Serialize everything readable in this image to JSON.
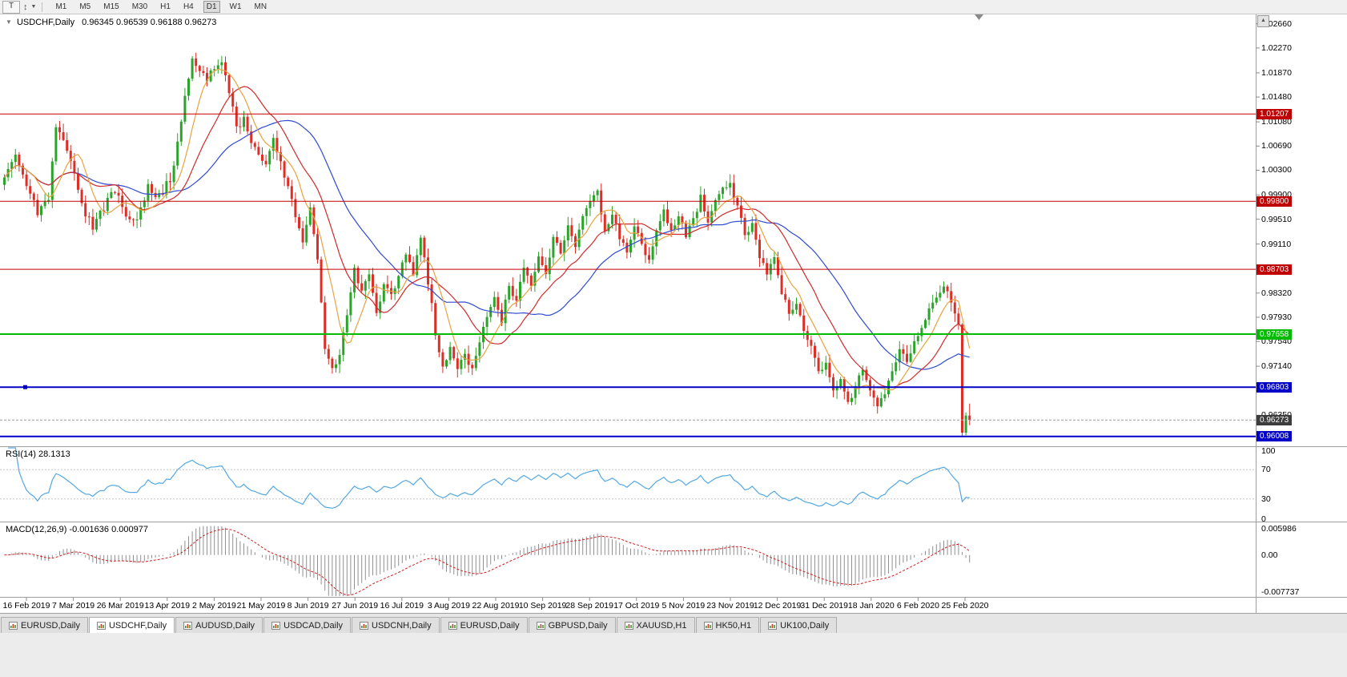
{
  "toolbar": {
    "t_button": "T",
    "pointer_icon": "↕",
    "caret_icon": "▼",
    "timeframes": [
      "M1",
      "M5",
      "M15",
      "M30",
      "H1",
      "H4",
      "D1",
      "W1",
      "MN"
    ],
    "active_timeframe": "D1"
  },
  "chart": {
    "collapse_icon": "▼",
    "scroll_up_icon": "▲",
    "title": "USDCHF,Daily",
    "ohlc_text": "0.96345 0.96539 0.96188 0.96273",
    "price_axis_labels": [
      "1.02660",
      "1.02270",
      "1.01870",
      "1.01480",
      "1.01080",
      "1.00690",
      "1.00300",
      "0.99900",
      "0.99510",
      "0.99110",
      "0.98720",
      "0.98320",
      "0.97930",
      "0.97540",
      "0.97140",
      "0.96750",
      "0.96350",
      "0.95960"
    ],
    "date_axis_labels": [
      "16 Feb 2019",
      "7 Mar 2019",
      "26 Mar 2019",
      "13 Apr 2019",
      "2 May 2019",
      "21 May 2019",
      "8 Jun 2019",
      "27 Jun 2019",
      "16 Jul 2019",
      "3 Aug 2019",
      "22 Aug 2019",
      "10 Sep 2019",
      "28 Sep 2019",
      "17 Oct 2019",
      "5 Nov 2019",
      "23 Nov 2019",
      "12 Dec 2019",
      "31 Dec 2019",
      "18 Jan 2020",
      "6 Feb 2020",
      "25 Feb 2020"
    ]
  },
  "rsi_panel": {
    "label": "RSI(14) 28.1313",
    "scale": [
      "100",
      "70",
      "30",
      "0"
    ]
  },
  "macd_panel": {
    "label": "MACD(12,26,9) -0.001636 0.000977",
    "scale": [
      "0.005986",
      "0.00",
      "-0.007737"
    ]
  },
  "tabs": [
    {
      "label": "EURUSD,Daily",
      "active": false
    },
    {
      "label": "USDCHF,Daily",
      "active": true
    },
    {
      "label": "AUDUSD,Daily",
      "active": false
    },
    {
      "label": "USDCAD,Daily",
      "active": false
    },
    {
      "label": "USDCNH,Daily",
      "active": false
    },
    {
      "label": "EURUSD,Daily",
      "active": false
    },
    {
      "label": "GBPUSD,Daily",
      "active": false
    },
    {
      "label": "XAUUSD,H1",
      "active": false
    },
    {
      "label": "HK50,H1",
      "active": false
    },
    {
      "label": "UK100,Daily",
      "active": false
    }
  ],
  "colors": {
    "candle_up": "#2AA52A",
    "candle_down": "#DD2F27",
    "rsi_line": "#53A8E2",
    "macd_hist": "#909090",
    "macd_signal": "#D02020",
    "bid_badge_bg": "#3C3C3C"
  },
  "chart_data": {
    "type": "candlestick",
    "symbol": "USDCHF",
    "period": "Daily",
    "current_ohlc": {
      "open": 0.96345,
      "high": 0.96539,
      "low": 0.96188,
      "close": 0.96273
    },
    "ylim": [
      0.9585,
      1.0276
    ],
    "n_candles": 263,
    "close_waypoints": [
      [
        0,
        1.0015
      ],
      [
        3,
        1.0052
      ],
      [
        6,
        1.0008
      ],
      [
        9,
        0.9962
      ],
      [
        12,
        0.9985
      ],
      [
        14,
        1.0098
      ],
      [
        16,
        1.0075
      ],
      [
        18,
        1.004
      ],
      [
        21,
        0.9975
      ],
      [
        24,
        0.9935
      ],
      [
        27,
        0.997
      ],
      [
        30,
        0.9998
      ],
      [
        33,
        0.996
      ],
      [
        36,
        0.9952
      ],
      [
        39,
        1.0002
      ],
      [
        42,
        0.9988
      ],
      [
        45,
        1.0015
      ],
      [
        47,
        1.0072
      ],
      [
        49,
        1.015
      ],
      [
        51,
        1.0208
      ],
      [
        53,
        1.019
      ],
      [
        55,
        1.0172
      ],
      [
        57,
        1.0198
      ],
      [
        59,
        1.0205
      ],
      [
        61,
        1.016
      ],
      [
        63,
        1.0095
      ],
      [
        65,
        1.011
      ],
      [
        67,
        1.008
      ],
      [
        69,
        1.0052
      ],
      [
        71,
        1.0042
      ],
      [
        73,
        1.0085
      ],
      [
        75,
        1.004
      ],
      [
        77,
        1.0005
      ],
      [
        79,
        0.9958
      ],
      [
        81,
        0.992
      ],
      [
        83,
        0.9975
      ],
      [
        85,
        0.989
      ],
      [
        87,
        0.9745
      ],
      [
        89,
        0.9705
      ],
      [
        91,
        0.973
      ],
      [
        93,
        0.98
      ],
      [
        95,
        0.9868
      ],
      [
        97,
        0.983
      ],
      [
        99,
        0.9862
      ],
      [
        101,
        0.98
      ],
      [
        103,
        0.9845
      ],
      [
        105,
        0.983
      ],
      [
        107,
        0.9858
      ],
      [
        109,
        0.9895
      ],
      [
        111,
        0.9862
      ],
      [
        113,
        0.992
      ],
      [
        115,
        0.985
      ],
      [
        117,
        0.977
      ],
      [
        119,
        0.971
      ],
      [
        121,
        0.9745
      ],
      [
        123,
        0.9708
      ],
      [
        125,
        0.974
      ],
      [
        127,
        0.9705
      ],
      [
        129,
        0.9752
      ],
      [
        131,
        0.979
      ],
      [
        133,
        0.9825
      ],
      [
        135,
        0.9788
      ],
      [
        137,
        0.9842
      ],
      [
        139,
        0.982
      ],
      [
        141,
        0.9872
      ],
      [
        143,
        0.985
      ],
      [
        145,
        0.9895
      ],
      [
        147,
        0.9868
      ],
      [
        149,
        0.9922
      ],
      [
        151,
        0.9898
      ],
      [
        153,
        0.9938
      ],
      [
        155,
        0.9912
      ],
      [
        157,
        0.9958
      ],
      [
        159,
        0.9985
      ],
      [
        161,
        0.9992
      ],
      [
        163,
        0.993
      ],
      [
        165,
        0.9962
      ],
      [
        167,
        0.992
      ],
      [
        169,
        0.9895
      ],
      [
        171,
        0.9942
      ],
      [
        173,
        0.9905
      ],
      [
        175,
        0.988
      ],
      [
        177,
        0.9935
      ],
      [
        179,
        0.9965
      ],
      [
        181,
        0.993
      ],
      [
        183,
        0.9958
      ],
      [
        185,
        0.992
      ],
      [
        187,
        0.9952
      ],
      [
        189,
        0.9985
      ],
      [
        191,
        0.9942
      ],
      [
        193,
        0.9978
      ],
      [
        195,
        1.0
      ],
      [
        197,
        1.0008
      ],
      [
        199,
        0.9968
      ],
      [
        201,
        0.9928
      ],
      [
        203,
        0.9945
      ],
      [
        205,
        0.989
      ],
      [
        207,
        0.9862
      ],
      [
        209,
        0.9885
      ],
      [
        211,
        0.9835
      ],
      [
        213,
        0.98
      ],
      [
        215,
        0.982
      ],
      [
        217,
        0.9775
      ],
      [
        219,
        0.9742
      ],
      [
        221,
        0.9705
      ],
      [
        223,
        0.972
      ],
      [
        225,
        0.968
      ],
      [
        227,
        0.9695
      ],
      [
        229,
        0.9655
      ],
      [
        231,
        0.968
      ],
      [
        233,
        0.9708
      ],
      [
        235,
        0.9672
      ],
      [
        237,
        0.9648
      ],
      [
        239,
        0.9672
      ],
      [
        241,
        0.97
      ],
      [
        243,
        0.9742
      ],
      [
        245,
        0.9722
      ],
      [
        247,
        0.9758
      ],
      [
        249,
        0.9772
      ],
      [
        251,
        0.9802
      ],
      [
        253,
        0.9828
      ],
      [
        255,
        0.9845
      ],
      [
        257,
        0.982
      ],
      [
        259,
        0.9775
      ],
      [
        260,
        0.9607
      ],
      [
        261,
        0.96345
      ],
      [
        262,
        0.96273
      ]
    ],
    "hlines": [
      {
        "value": 1.01207,
        "label": "1.01207",
        "color": "#C00000",
        "width": 1
      },
      {
        "value": 0.998,
        "label": "0.99800",
        "color": "#C00000",
        "width": 1
      },
      {
        "value": 0.98703,
        "label": "0.98703",
        "color": "#C00000",
        "width": 1
      },
      {
        "value": 0.97658,
        "label": "0.97658",
        "color": "#00BB00",
        "width": 2
      },
      {
        "value": 0.96803,
        "label": "0.96803",
        "color": "#0000C8",
        "width": 2,
        "handle": true
      },
      {
        "value": 0.96008,
        "label": "0.96008",
        "color": "#0000C8",
        "width": 2
      }
    ],
    "bid": {
      "value": 0.96273,
      "label": "0.96273"
    },
    "moving_averages": [
      {
        "period": 8,
        "color": "#E8A33D"
      },
      {
        "period": 18,
        "color": "#D02A2A"
      },
      {
        "period": 34,
        "color": "#2F4BD0"
      }
    ],
    "rsi": {
      "period": 14,
      "current": 28.1313,
      "levels": [
        70,
        30
      ],
      "range": [
        0,
        100
      ]
    },
    "macd": {
      "fast": 12,
      "slow": 26,
      "signal_period": 9,
      "current": -0.001636,
      "signal_current": 0.000977,
      "range": [
        -0.007737,
        0.005986
      ]
    }
  }
}
